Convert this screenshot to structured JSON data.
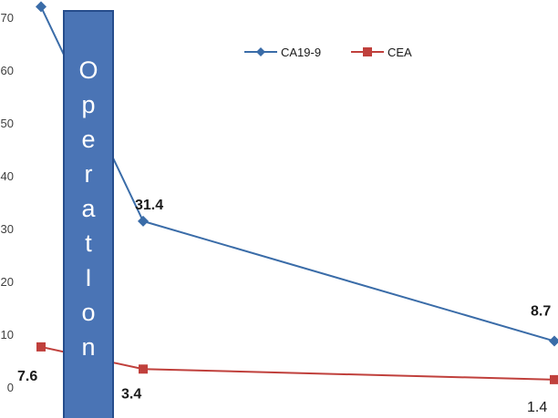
{
  "chart_data": {
    "type": "line",
    "x": [
      1,
      2,
      3
    ],
    "ylim": [
      0,
      70
    ],
    "yticks": [
      "0",
      "10",
      "20",
      "30",
      "40",
      "50",
      "60",
      "70"
    ],
    "grid": false,
    "legend_position": "top-right",
    "series": [
      {
        "name": "CA19-9",
        "values": [
          72,
          31.4,
          8.7
        ],
        "labels": [
          "",
          "31.4",
          "8.7"
        ],
        "color": "#3a6ca8",
        "marker": "diamond"
      },
      {
        "name": "CEA",
        "values": [
          7.6,
          3.4,
          1.4
        ],
        "labels": [
          "7.6",
          "3.4",
          "1.4"
        ],
        "color": "#c0403c",
        "marker": "square"
      }
    ],
    "annotation": {
      "text": "Operation",
      "letters": [
        "O",
        "p",
        "e",
        "r",
        "a",
        "t",
        "I",
        "o",
        "n"
      ],
      "fill": "#4a74b5",
      "border": "#264d8c"
    }
  }
}
